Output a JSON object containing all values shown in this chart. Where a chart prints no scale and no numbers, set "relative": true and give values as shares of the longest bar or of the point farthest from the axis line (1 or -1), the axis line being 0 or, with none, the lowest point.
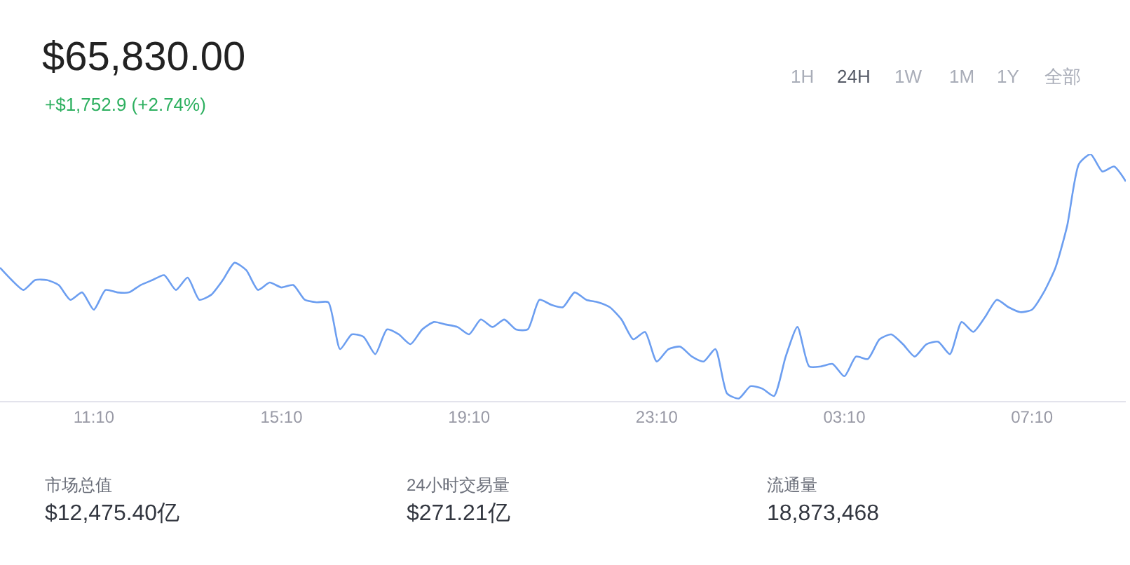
{
  "chart_data": {
    "type": "line",
    "title": "$65,830.00",
    "subtitle": "+$1,752.9 (+2.74%)",
    "relative": true,
    "categories": [
      null,
      null,
      null,
      null,
      null,
      null,
      null,
      null,
      "11:10",
      null,
      null,
      null,
      null,
      null,
      null,
      null,
      null,
      null,
      null,
      null,
      null,
      null,
      null,
      null,
      "15:10",
      null,
      null,
      null,
      null,
      null,
      null,
      null,
      null,
      null,
      null,
      null,
      null,
      null,
      null,
      null,
      "19:10",
      null,
      null,
      null,
      null,
      null,
      null,
      null,
      null,
      null,
      null,
      null,
      null,
      null,
      null,
      null,
      "23:10",
      null,
      null,
      null,
      null,
      null,
      null,
      null,
      null,
      null,
      null,
      null,
      null,
      null,
      null,
      null,
      "03:10",
      null,
      null,
      null,
      null,
      null,
      null,
      null,
      null,
      null,
      null,
      null,
      null,
      null,
      null,
      null,
      "07:10",
      null,
      null,
      null,
      null,
      null,
      null,
      null,
      null
    ],
    "series": [
      {
        "color": "#6c9ef0",
        "values": [
          0.54,
          0.49,
          0.45,
          0.49,
          0.49,
          0.47,
          0.41,
          0.44,
          0.37,
          0.45,
          0.44,
          0.44,
          0.47,
          0.49,
          0.51,
          0.45,
          0.5,
          0.41,
          0.43,
          0.49,
          0.56,
          0.53,
          0.45,
          0.48,
          0.46,
          0.47,
          0.41,
          0.4,
          0.4,
          0.21,
          0.27,
          0.26,
          0.19,
          0.29,
          0.27,
          0.23,
          0.29,
          0.32,
          0.31,
          0.3,
          0.27,
          0.33,
          0.3,
          0.33,
          0.29,
          0.29,
          0.41,
          0.39,
          0.38,
          0.44,
          0.41,
          0.4,
          0.38,
          0.33,
          0.25,
          0.28,
          0.16,
          0.21,
          0.22,
          0.18,
          0.16,
          0.21,
          0.03,
          0.01,
          0.06,
          0.05,
          0.02,
          0.18,
          0.3,
          0.14,
          0.14,
          0.15,
          0.1,
          0.18,
          0.17,
          0.25,
          0.27,
          0.23,
          0.18,
          0.23,
          0.24,
          0.19,
          0.32,
          0.28,
          0.34,
          0.41,
          0.38,
          0.36,
          0.37,
          0.44,
          0.54,
          0.71,
          0.96,
          1.0,
          0.93,
          0.95,
          0.89
        ]
      }
    ],
    "marker": "none",
    "line_style": "solid",
    "annotations": [
      "1H",
      "24H",
      "1W",
      "1M",
      "1Y",
      "全部",
      "市场总值",
      "$12,475.40亿",
      "24小时交易量",
      "$271.21亿",
      "流通量",
      "18,873,468"
    ]
  }
}
